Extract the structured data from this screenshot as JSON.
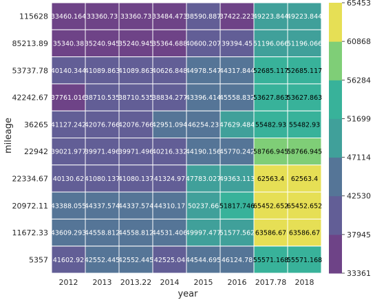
{
  "chart_data": {
    "type": "heatmap",
    "xlabel": "year",
    "ylabel": "mileage",
    "x_categories": [
      "2012",
      "2013",
      "2013.22",
      "2014",
      "2015",
      "2016",
      "2017.78",
      "2018"
    ],
    "y_categories": [
      "115628",
      "85213.89",
      "53737.78",
      "42242.67",
      "36265",
      "22942",
      "22334.67",
      "20972.11",
      "11672.33",
      "5357"
    ],
    "values": [
      [
        33460.164,
        33360.73,
        33360.73,
        33484.473,
        38590.887,
        37422.223,
        49223.844,
        49223.844
      ],
      [
        35340.38,
        35240.945,
        35240.945,
        35364.688,
        40600.207,
        39394.45,
        51196.066,
        51196.066
      ],
      [
        40140.344,
        41089.863,
        41089.863,
        40626.848,
        44978.547,
        44317.844,
        52685.117,
        52685.117
      ],
      [
        37761.016,
        38710.535,
        38710.535,
        38834.277,
        43396.414,
        45558.832,
        53627.863,
        53627.863
      ],
      [
        41127.242,
        42076.766,
        42076.766,
        42951.094,
        46254.23,
        47629.484,
        55482.93,
        55482.93
      ],
      [
        39021.977,
        39971.496,
        39971.496,
        40216.332,
        44190.156,
        45770.242,
        58766.945,
        58766.945
      ],
      [
        40130.62,
        41080.137,
        41080.137,
        41324.97,
        47783.027,
        49363.113,
        62563.4,
        62563.4
      ],
      [
        43388.055,
        44337.574,
        44337.574,
        44310.17,
        50237.66,
        51817.746,
        65452.652,
        65452.652
      ],
      [
        43609.293,
        44558.812,
        44558.812,
        44531.406,
        49997.477,
        51577.562,
        63586.67,
        63586.67
      ],
      [
        41602.92,
        42552.445,
        42552.445,
        42525.04,
        44544.695,
        46124.78,
        55571.168,
        55571.168
      ]
    ],
    "value_labels": [
      [
        "33460.164",
        "33360.73",
        "33360.73",
        "33484.473",
        "38590.887",
        "37422.223",
        "49223.844",
        "49223.844"
      ],
      [
        "35340.38",
        "35240.945",
        "35240.945",
        "35364.688",
        "40600.207",
        "39394.45",
        "51196.066",
        "51196.066"
      ],
      [
        "40140.344",
        "41089.863",
        "41089.863",
        "40626.848",
        "44978.547",
        "44317.844",
        "52685.117",
        "52685.117"
      ],
      [
        "37761.016",
        "38710.535",
        "38710.535",
        "38834.277",
        "43396.414",
        "45558.832",
        "53627.863",
        "53627.863"
      ],
      [
        "41127.242",
        "42076.766",
        "42076.766",
        "42951.094",
        "46254.23",
        "47629.484",
        "55482.93",
        "55482.93"
      ],
      [
        "39021.977",
        "39971.496",
        "39971.496",
        "40216.332",
        "44190.156",
        "45770.242",
        "58766.945",
        "58766.945"
      ],
      [
        "40130.62",
        "41080.137",
        "41080.137",
        "41324.97",
        "47783.027",
        "49363.113",
        "62563.4",
        "62563.4"
      ],
      [
        "43388.055",
        "44337.574",
        "44337.574",
        "44310.17",
        "50237.66",
        "51817.746",
        "65452.652",
        "65452.652"
      ],
      [
        "43609.293",
        "44558.812",
        "44558.812",
        "44531.406",
        "49997.477",
        "51577.562",
        "63586.67",
        "63586.67"
      ],
      [
        "41602.92",
        "42552.445",
        "42552.445",
        "42525.04",
        "44544.695",
        "46124.78",
        "55571.168",
        "55571.168"
      ]
    ],
    "vmin": 33361,
    "vmax": 65453,
    "colorbar_ticks": [
      "65453",
      "60868",
      "56284",
      "51699",
      "47114",
      "42530",
      "37945",
      "33361"
    ],
    "colors": [
      "#6e4387",
      "#625e96",
      "#557597",
      "#40a09a",
      "#38b29a",
      "#7fce77",
      "#e6df55"
    ],
    "light_text_color": "#ffffff",
    "dark_text_color": "#000000",
    "grid": false
  }
}
